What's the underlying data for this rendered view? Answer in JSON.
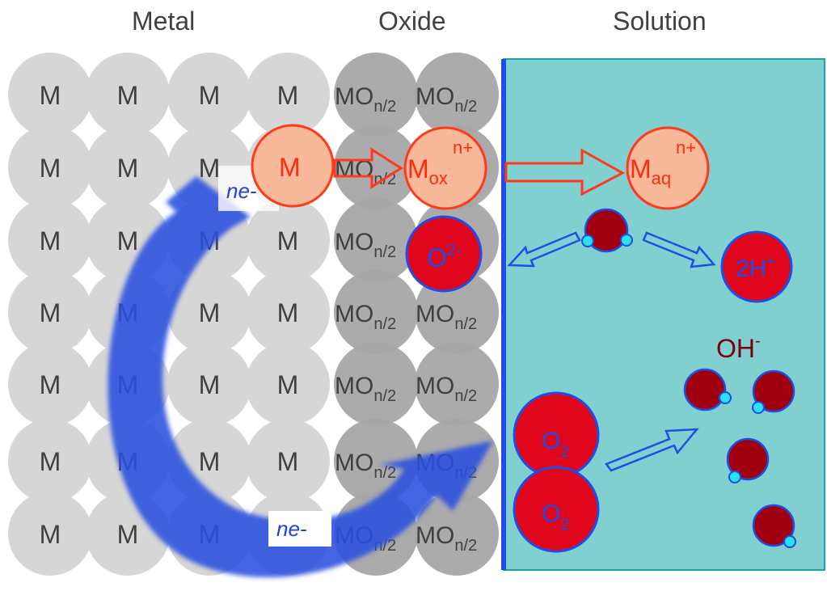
{
  "headers": {
    "metal": "Metal",
    "oxide": "Oxide",
    "solution": "Solution"
  },
  "atoms": {
    "metal": "M",
    "oxide_base": "MO",
    "oxide_sub": "n/2"
  },
  "species": {
    "m_reacting": "M",
    "m_ox_base": "M",
    "m_ox_sub": "ox",
    "m_ox_sup": "n+",
    "m_aq_base": "M",
    "m_aq_sub": "aq",
    "m_aq_sup": "n+",
    "oxide_ion_base": "O",
    "oxide_ion_sup": "2-",
    "hydrogen_base": "2H",
    "hydrogen_sup": "+",
    "oxygen_base": "O",
    "oxygen_sub": "2",
    "hydroxide_base": "OH",
    "hydroxide_sup": "-"
  },
  "electrons": {
    "upper": {
      "coef": "n",
      "sym": "e-"
    },
    "lower": {
      "coef": "n",
      "sym": "e-"
    }
  },
  "colors": {
    "metal_atom": "#d6d6d6",
    "oxide_atom": "#a6a6a6",
    "solution": "#80d0cf",
    "interface": "#1f4de6",
    "ion_fill": "#f8b89a",
    "ion_stroke": "#ff3a1a",
    "red_species": "#e0061b",
    "water": "#a00010",
    "hydrogen_dot": "#29e2f5",
    "electron_arrow": "#2a4fe0"
  }
}
